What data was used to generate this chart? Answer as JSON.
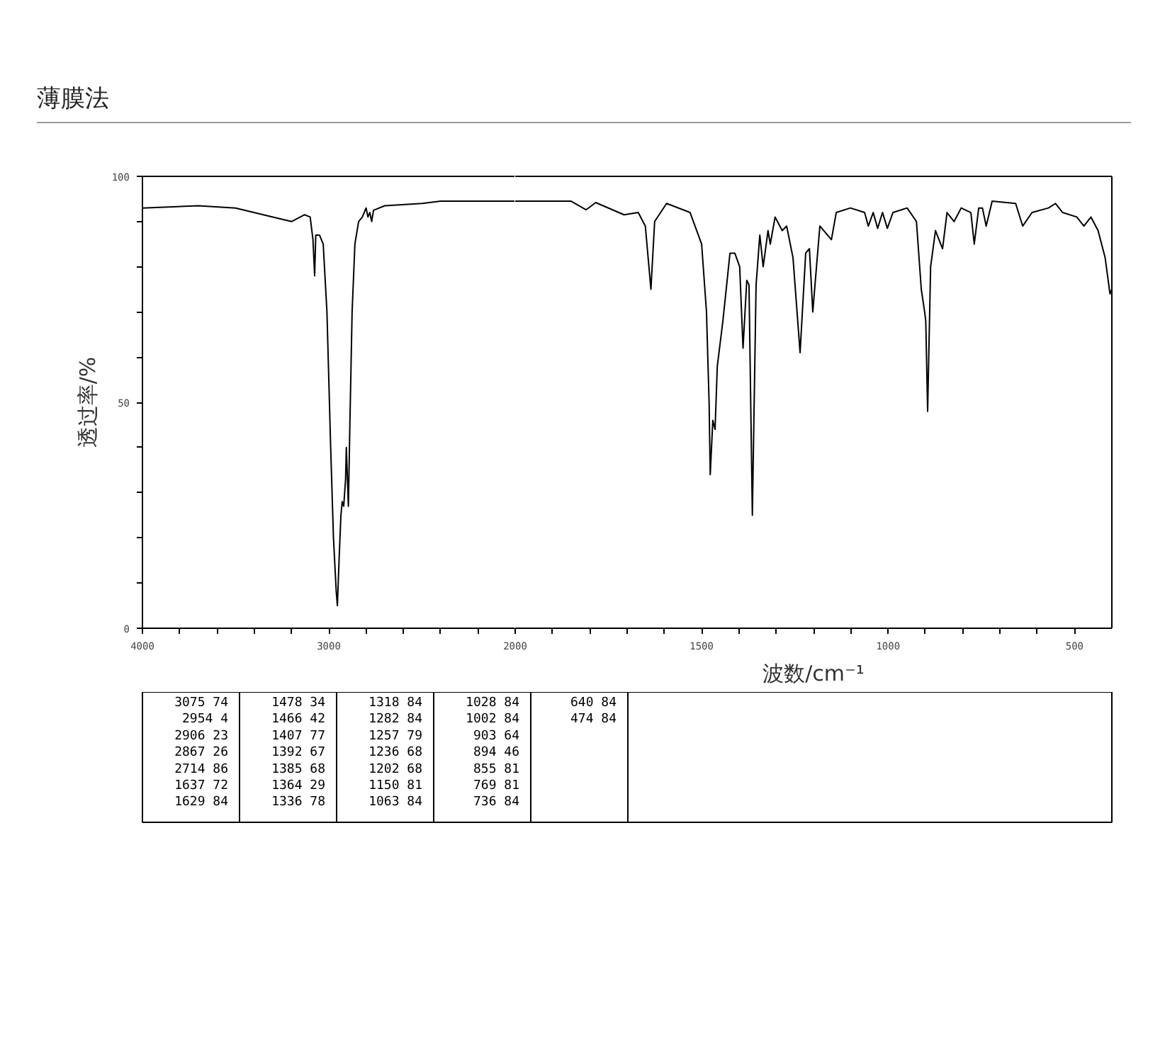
{
  "chart_data": [
    {
      "type": "line",
      "title": "薄膜法",
      "ylabel": "透过率/%",
      "xlim": [
        4000,
        2000
      ],
      "ylim": [
        0,
        100
      ],
      "xticks": [
        4000,
        {
          "value": 3800,
          "label": null
        },
        {
          "value": 3600,
          "label": null
        },
        {
          "value": 3400,
          "label": null
        },
        {
          "value": 3200,
          "label": null
        },
        3000,
        {
          "value": 2800,
          "label": null
        },
        {
          "value": 2600,
          "label": null
        },
        {
          "value": 2400,
          "label": null
        },
        {
          "value": 2200,
          "label": null
        }
      ],
      "yticks": [
        0,
        {
          "value": 10,
          "label": null
        },
        {
          "value": 20,
          "label": null
        },
        {
          "value": 30,
          "label": null
        },
        {
          "value": 40,
          "label": null
        },
        50,
        {
          "value": 60,
          "label": null
        },
        {
          "value": 70,
          "label": null
        },
        {
          "value": 80,
          "label": null
        },
        {
          "value": 90,
          "label": null
        },
        100
      ],
      "grid": false,
      "series": [
        {
          "color": "#000000",
          "x": [
            4000,
            3700,
            3500,
            3300,
            3200,
            3130,
            3100,
            3085,
            3076,
            3070,
            3050,
            3030,
            3010,
            2990,
            2975,
            2960,
            2954,
            2945,
            2935,
            2928,
            2920,
            2910,
            2906,
            2900,
            2895,
            2887,
            2875,
            2860,
            2840,
            2820,
            2800,
            2790,
            2780,
            2770,
            2760,
            2700,
            2500,
            2400,
            2200,
            2000
          ],
          "values": [
            93,
            93.5,
            93,
            91,
            90,
            91.5,
            91,
            86,
            78,
            87,
            87,
            85,
            70,
            40,
            20,
            8,
            5,
            15,
            25,
            28,
            27,
            33,
            40,
            33,
            27,
            45,
            70,
            85,
            90,
            91,
            93,
            91,
            92,
            90,
            92.5,
            93.5,
            94,
            94.5,
            94.5,
            94.5
          ]
        }
      ]
    },
    {
      "type": "line",
      "xlabel": "波数/cm⁻¹",
      "xlim": [
        2000,
        400
      ],
      "ylim": [
        0,
        100
      ],
      "tick_labels": "x",
      "xticks": [
        2000,
        {
          "value": 1900,
          "label": null
        },
        {
          "value": 1800,
          "label": null
        },
        {
          "value": 1700,
          "label": null
        },
        {
          "value": 1600,
          "label": null
        },
        1500,
        {
          "value": 1400,
          "label": null
        },
        {
          "value": 1300,
          "label": null
        },
        {
          "value": 1200,
          "label": null
        },
        {
          "value": 1100,
          "label": null
        },
        1000,
        {
          "value": 900,
          "label": null
        },
        {
          "value": 800,
          "label": null
        },
        {
          "value": 700,
          "label": null
        },
        {
          "value": 600,
          "label": null
        },
        500
      ],
      "grid": false,
      "series": [
        {
          "color": "#000000",
          "x": [
            2000,
            1850,
            1810,
            1784,
            1708,
            1670,
            1651,
            1636,
            1626,
            1594,
            1531,
            1500,
            1487,
            1480,
            1477,
            1470,
            1464,
            1458,
            1443,
            1424,
            1411,
            1398,
            1389,
            1379,
            1373,
            1364,
            1354,
            1344,
            1335,
            1322,
            1316,
            1303,
            1284,
            1272,
            1255,
            1236,
            1221,
            1211,
            1202,
            1183,
            1152,
            1139,
            1101,
            1063,
            1053,
            1040,
            1028,
            1015,
            1002,
            987,
            949,
            924,
            911,
            902,
            899,
            894,
            886,
            873,
            854,
            842,
            823,
            804,
            778,
            769,
            757,
            747,
            737,
            721,
            658,
            639,
            614,
            570,
            551,
            532,
            494,
            475,
            456,
            437,
            418,
            405,
            400
          ],
          "values": [
            94.5,
            94.5,
            92.6,
            94.2,
            91.5,
            92,
            89,
            75,
            90,
            94,
            92,
            85,
            70,
            50,
            34,
            46,
            44,
            58,
            68,
            83,
            83,
            80,
            62,
            77,
            76,
            25,
            76,
            87,
            80,
            88,
            85,
            91,
            88,
            89,
            82,
            61,
            83,
            84,
            70,
            89,
            86,
            92,
            93,
            92,
            89,
            92,
            88.5,
            92,
            88.5,
            92,
            93,
            90,
            75,
            70,
            68,
            48,
            80,
            88,
            84,
            92,
            90,
            93,
            92,
            85,
            93,
            93,
            89,
            94.5,
            94,
            89,
            92,
            93,
            94,
            92,
            91,
            89,
            91,
            88,
            82,
            74,
            75
          ]
        }
      ],
      "annotations": [
        "3075 74",
        "2954 4",
        "2906 23",
        "2867 26",
        "2714 86",
        "1637 72",
        "1629 84",
        "1478 34",
        "1466 42",
        "1407 77",
        "1392 67",
        "1385 68",
        "1364 29",
        "1336 78",
        "1318 84",
        "1282 84",
        "1257 79",
        "1236 68",
        "1202 68",
        "1150 81",
        "1063 84",
        "1028 84",
        "1002 84",
        "903 64",
        "894 46",
        "855 81",
        "769 81",
        "736 84",
        "640 84",
        "474 84"
      ]
    }
  ]
}
